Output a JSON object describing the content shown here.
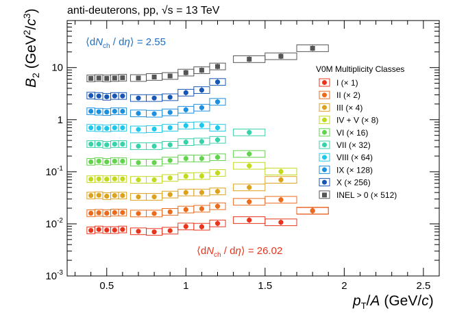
{
  "chart_data": {
    "type": "scatter",
    "title": "anti-deuterons, pp, √s = 13 TeV",
    "xlabel": "p_T/A (GeV/c)",
    "ylabel": "B_2 (GeV^2/c^3)",
    "xlim": [
      0.25,
      2.6
    ],
    "ylim": [
      0.001,
      80
    ],
    "yscale": "log",
    "x_ticks": [
      0.5,
      1,
      1.5,
      2,
      2.5
    ],
    "x_tick_labels": [
      "0.5",
      "1",
      "1.5",
      "2",
      "2.5"
    ],
    "y_ticks": [
      0.001,
      0.01,
      0.1,
      1,
      10
    ],
    "legend_title": "V0M Multiplicity Classes",
    "legend_position": "right",
    "annotations": {
      "top": "⟨dNch / dη⟩ = 2.55",
      "bottom": "⟨dNch / dη⟩ = 26.02"
    },
    "series": [
      {
        "name": "I (× 1)",
        "color": "#e8341c",
        "x": [
          0.4,
          0.45,
          0.5,
          0.55,
          0.6,
          0.7,
          0.8,
          0.9,
          1.0,
          1.1,
          1.2,
          1.4,
          1.6,
          1.8
        ],
        "y": [
          0.0075,
          0.0078,
          0.0076,
          0.0076,
          0.0078,
          0.0072,
          0.007,
          0.0074,
          0.0089,
          0.0088,
          0.0102,
          0.0118,
          0.0107,
          0.0178
        ]
      },
      {
        "name": "II (× 2)",
        "color": "#ea6b1c",
        "x": [
          0.4,
          0.45,
          0.5,
          0.55,
          0.6,
          0.7,
          0.8,
          0.9,
          1.0,
          1.1,
          1.2,
          1.4,
          1.6,
          1.8
        ],
        "y": [
          0.016,
          0.0163,
          0.016,
          0.0165,
          0.0165,
          0.0158,
          0.0158,
          0.017,
          0.0188,
          0.0195,
          0.0218,
          0.0265,
          0.029,
          0.018
        ]
      },
      {
        "name": "III (× 4)",
        "color": "#dca21e",
        "x": [
          0.4,
          0.45,
          0.5,
          0.55,
          0.6,
          0.7,
          0.8,
          0.9,
          1.0,
          1.1,
          1.2,
          1.4,
          1.6
        ],
        "y": [
          0.035,
          0.0355,
          0.034,
          0.035,
          0.035,
          0.033,
          0.033,
          0.0365,
          0.04,
          0.04,
          0.042,
          0.05,
          0.07
        ]
      },
      {
        "name": "IV + V (× 8)",
        "color": "#c3d91e",
        "x": [
          0.4,
          0.45,
          0.5,
          0.55,
          0.6,
          0.7,
          0.8,
          0.9,
          1.0,
          1.1,
          1.2,
          1.4,
          1.6
        ],
        "y": [
          0.072,
          0.073,
          0.072,
          0.073,
          0.073,
          0.07,
          0.07,
          0.076,
          0.082,
          0.083,
          0.095,
          0.13,
          0.101
        ]
      },
      {
        "name": "VI (× 16)",
        "color": "#63d24e",
        "x": [
          0.4,
          0.45,
          0.5,
          0.55,
          0.6,
          0.7,
          0.8,
          0.9,
          1.0,
          1.1,
          1.2,
          1.4
        ],
        "y": [
          0.155,
          0.16,
          0.155,
          0.16,
          0.16,
          0.15,
          0.15,
          0.165,
          0.18,
          0.18,
          0.19,
          0.22
        ]
      },
      {
        "name": "VII (× 32)",
        "color": "#37d1aa",
        "x": [
          0.4,
          0.45,
          0.5,
          0.55,
          0.6,
          0.7,
          0.8,
          0.9,
          1.0,
          1.1,
          1.2,
          1.4
        ],
        "y": [
          0.34,
          0.34,
          0.33,
          0.34,
          0.34,
          0.31,
          0.31,
          0.33,
          0.37,
          0.38,
          0.41,
          0.57
        ]
      },
      {
        "name": "VIII (× 64)",
        "color": "#1fc8ea",
        "x": [
          0.4,
          0.45,
          0.5,
          0.55,
          0.6,
          0.7,
          0.8,
          0.9,
          1.0,
          1.1,
          1.2
        ],
        "y": [
          0.7,
          0.69,
          0.68,
          0.7,
          0.7,
          0.65,
          0.66,
          0.7,
          0.77,
          0.78,
          0.7
        ]
      },
      {
        "name": "IX (× 128)",
        "color": "#1c8fde",
        "x": [
          0.4,
          0.45,
          0.5,
          0.55,
          0.6,
          0.7,
          0.8,
          0.9,
          1.0,
          1.1,
          1.2
        ],
        "y": [
          1.45,
          1.42,
          1.4,
          1.45,
          1.45,
          1.32,
          1.3,
          1.38,
          1.55,
          1.7,
          2.2
        ]
      },
      {
        "name": "X (× 256)",
        "color": "#1856b4",
        "x": [
          0.4,
          0.45,
          0.5,
          0.55,
          0.6,
          0.7,
          0.8,
          0.9,
          1.0,
          1.1,
          1.2
        ],
        "y": [
          2.9,
          2.85,
          2.75,
          2.85,
          2.85,
          2.6,
          2.6,
          2.7,
          3.3,
          3.7,
          5.3
        ]
      },
      {
        "name": "INEL > 0 (× 512)",
        "color": "#555555",
        "x": [
          0.4,
          0.45,
          0.5,
          0.55,
          0.6,
          0.7,
          0.8,
          0.9,
          1.0,
          1.1,
          1.2,
          1.4,
          1.6,
          1.8
        ],
        "y": [
          6.2,
          6.3,
          6.2,
          6.3,
          6.4,
          6.3,
          6.6,
          6.9,
          8.0,
          8.9,
          10.5,
          14.5,
          16.5,
          23.5
        ]
      }
    ]
  }
}
